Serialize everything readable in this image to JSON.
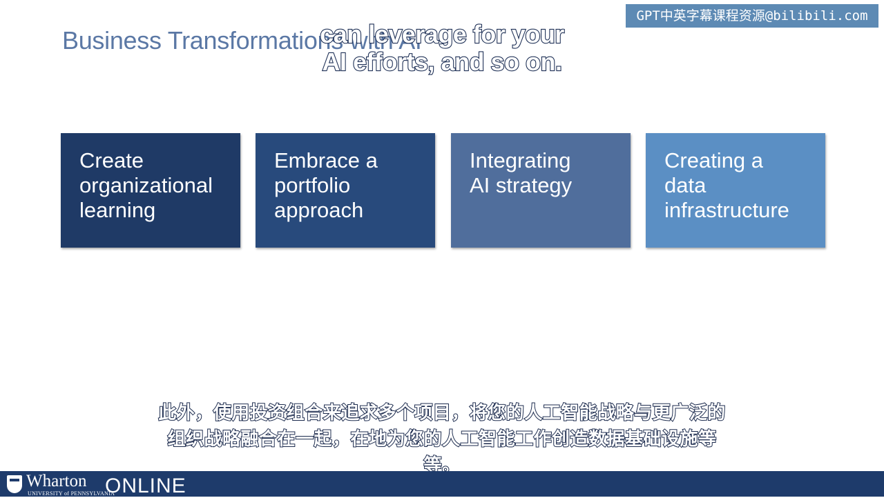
{
  "watermark": "GPT中英字幕课程资源@bilibili.com",
  "slide": {
    "title": "Business Transformations with AI",
    "cards": [
      {
        "lines": [
          "Create",
          "organizational",
          "learning"
        ],
        "color": "#1f3a66"
      },
      {
        "lines": [
          "Embrace a",
          "portfolio",
          "approach"
        ],
        "color": "#284a7c"
      },
      {
        "lines": [
          "Integrating",
          "AI strategy",
          ""
        ],
        "color": "#506e9c"
      },
      {
        "lines": [
          "Creating a",
          "data",
          "infrastructure"
        ],
        "color": "#5b8fc4"
      }
    ]
  },
  "captions": {
    "english": [
      "can leverage for your",
      "AI efforts, and so on."
    ],
    "chinese": [
      "此外，使用投资组合来追求多个项目，将您的人工智能战略与更广泛的",
      "组织战略融合在一起，在地为您的人工智能工作创造数据基础设施等",
      "等。"
    ]
  },
  "footer": {
    "brand": "Wharton",
    "university": "UNIVERSITY of PENNSYLVANIA",
    "online": "ONLINE",
    "color": "#1e3b6b"
  }
}
